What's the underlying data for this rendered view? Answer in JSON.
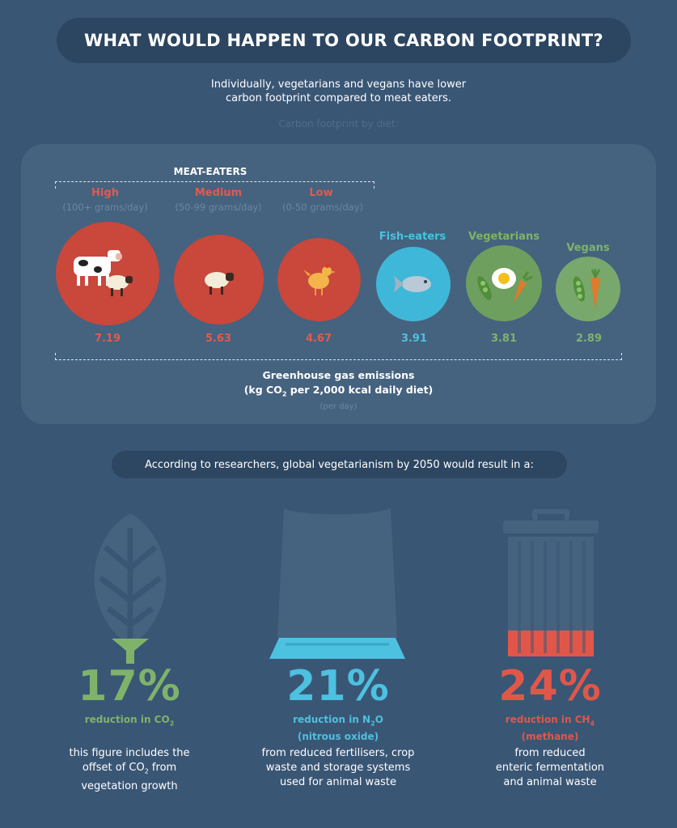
{
  "header": {
    "title": "WHAT WOULD HAPPEN TO OUR CARBON FOOTPRINT?",
    "intro_line1": "Individually, vegetarians and vegans have lower",
    "intro_line2": "carbon footprint compared to meat eaters.",
    "subtitle": "Carbon footprint by diet:"
  },
  "panel": {
    "group_label": "MEAT-EATERS",
    "axis_line1": "Greenhouse gas emissions",
    "axis_line2_pre": "(kg CO",
    "axis_line2_sub": "2",
    "axis_line2_post": " per 2,000 kcal daily diet)",
    "per_day": "(per day)"
  },
  "chart_data": {
    "type": "bar",
    "title": "Carbon footprint by diet:",
    "categories": [
      "High",
      "Medium",
      "Low",
      "Fish-eaters",
      "Vegetarians",
      "Vegans"
    ],
    "category_notes": [
      "(100+ grams/day)",
      "(50-99 grams/day)",
      "(0-50 grams/day)",
      "",
      "",
      ""
    ],
    "group": "MEAT-EATERS",
    "values": [
      7.19,
      5.63,
      4.67,
      3.91,
      3.81,
      2.89
    ],
    "value_labels": [
      "7.19",
      "5.63",
      "4.67",
      "3.91",
      "3.81",
      "2.89"
    ],
    "colors": [
      "#c9473b",
      "#c9473b",
      "#c9473b",
      "#3fb7d8",
      "#6e9f5e",
      "#78a86c"
    ],
    "xlabel": "Greenhouse gas emissions (kg CO2 per 2,000 kcal daily diet)",
    "ylabel": "",
    "encoding": "circle-area"
  },
  "research": {
    "lead": "According to researchers, global vegetarianism by 2050 would result in a:",
    "items": [
      {
        "percent": "17%",
        "label_pre": "reduction in CO",
        "label_sub": "2",
        "label_post": "",
        "label_line2": "",
        "desc_line1": "this figure includes the",
        "desc_line2_pre": "offset of CO",
        "desc_line2_sub": "2",
        "desc_line2_post": " from",
        "desc_line3": "vegetation growth",
        "color": "#7fb36a",
        "icon": "leaf-icon"
      },
      {
        "percent": "21%",
        "label_pre": "reduction in N",
        "label_sub": "2",
        "label_post": "O",
        "label_line2": "(nitrous oxide)",
        "desc_line1": "from reduced fertilisers, crop",
        "desc_line2_pre": "waste and storage systems",
        "desc_line2_sub": "",
        "desc_line2_post": "",
        "desc_line3": "used for animal waste",
        "color": "#4cc1e0",
        "icon": "fertiliser-bag-icon"
      },
      {
        "percent": "24%",
        "label_pre": "reduction in CH",
        "label_sub": "4",
        "label_post": "",
        "label_line2": "(methane)",
        "desc_line1": "from reduced",
        "desc_line2_pre": "enteric fermentation",
        "desc_line2_sub": "",
        "desc_line2_post": "",
        "desc_line3": "and animal waste",
        "color": "#e0574a",
        "icon": "trash-can-icon"
      }
    ]
  },
  "colors": {
    "background": "#3a5675",
    "panel": "#45627f",
    "pill": "#2c4560",
    "meat_red": "#c9473b",
    "meat_label": "#e15b4d",
    "fish_blue": "#3fb7d8",
    "veg_green": "#7fb36a"
  }
}
